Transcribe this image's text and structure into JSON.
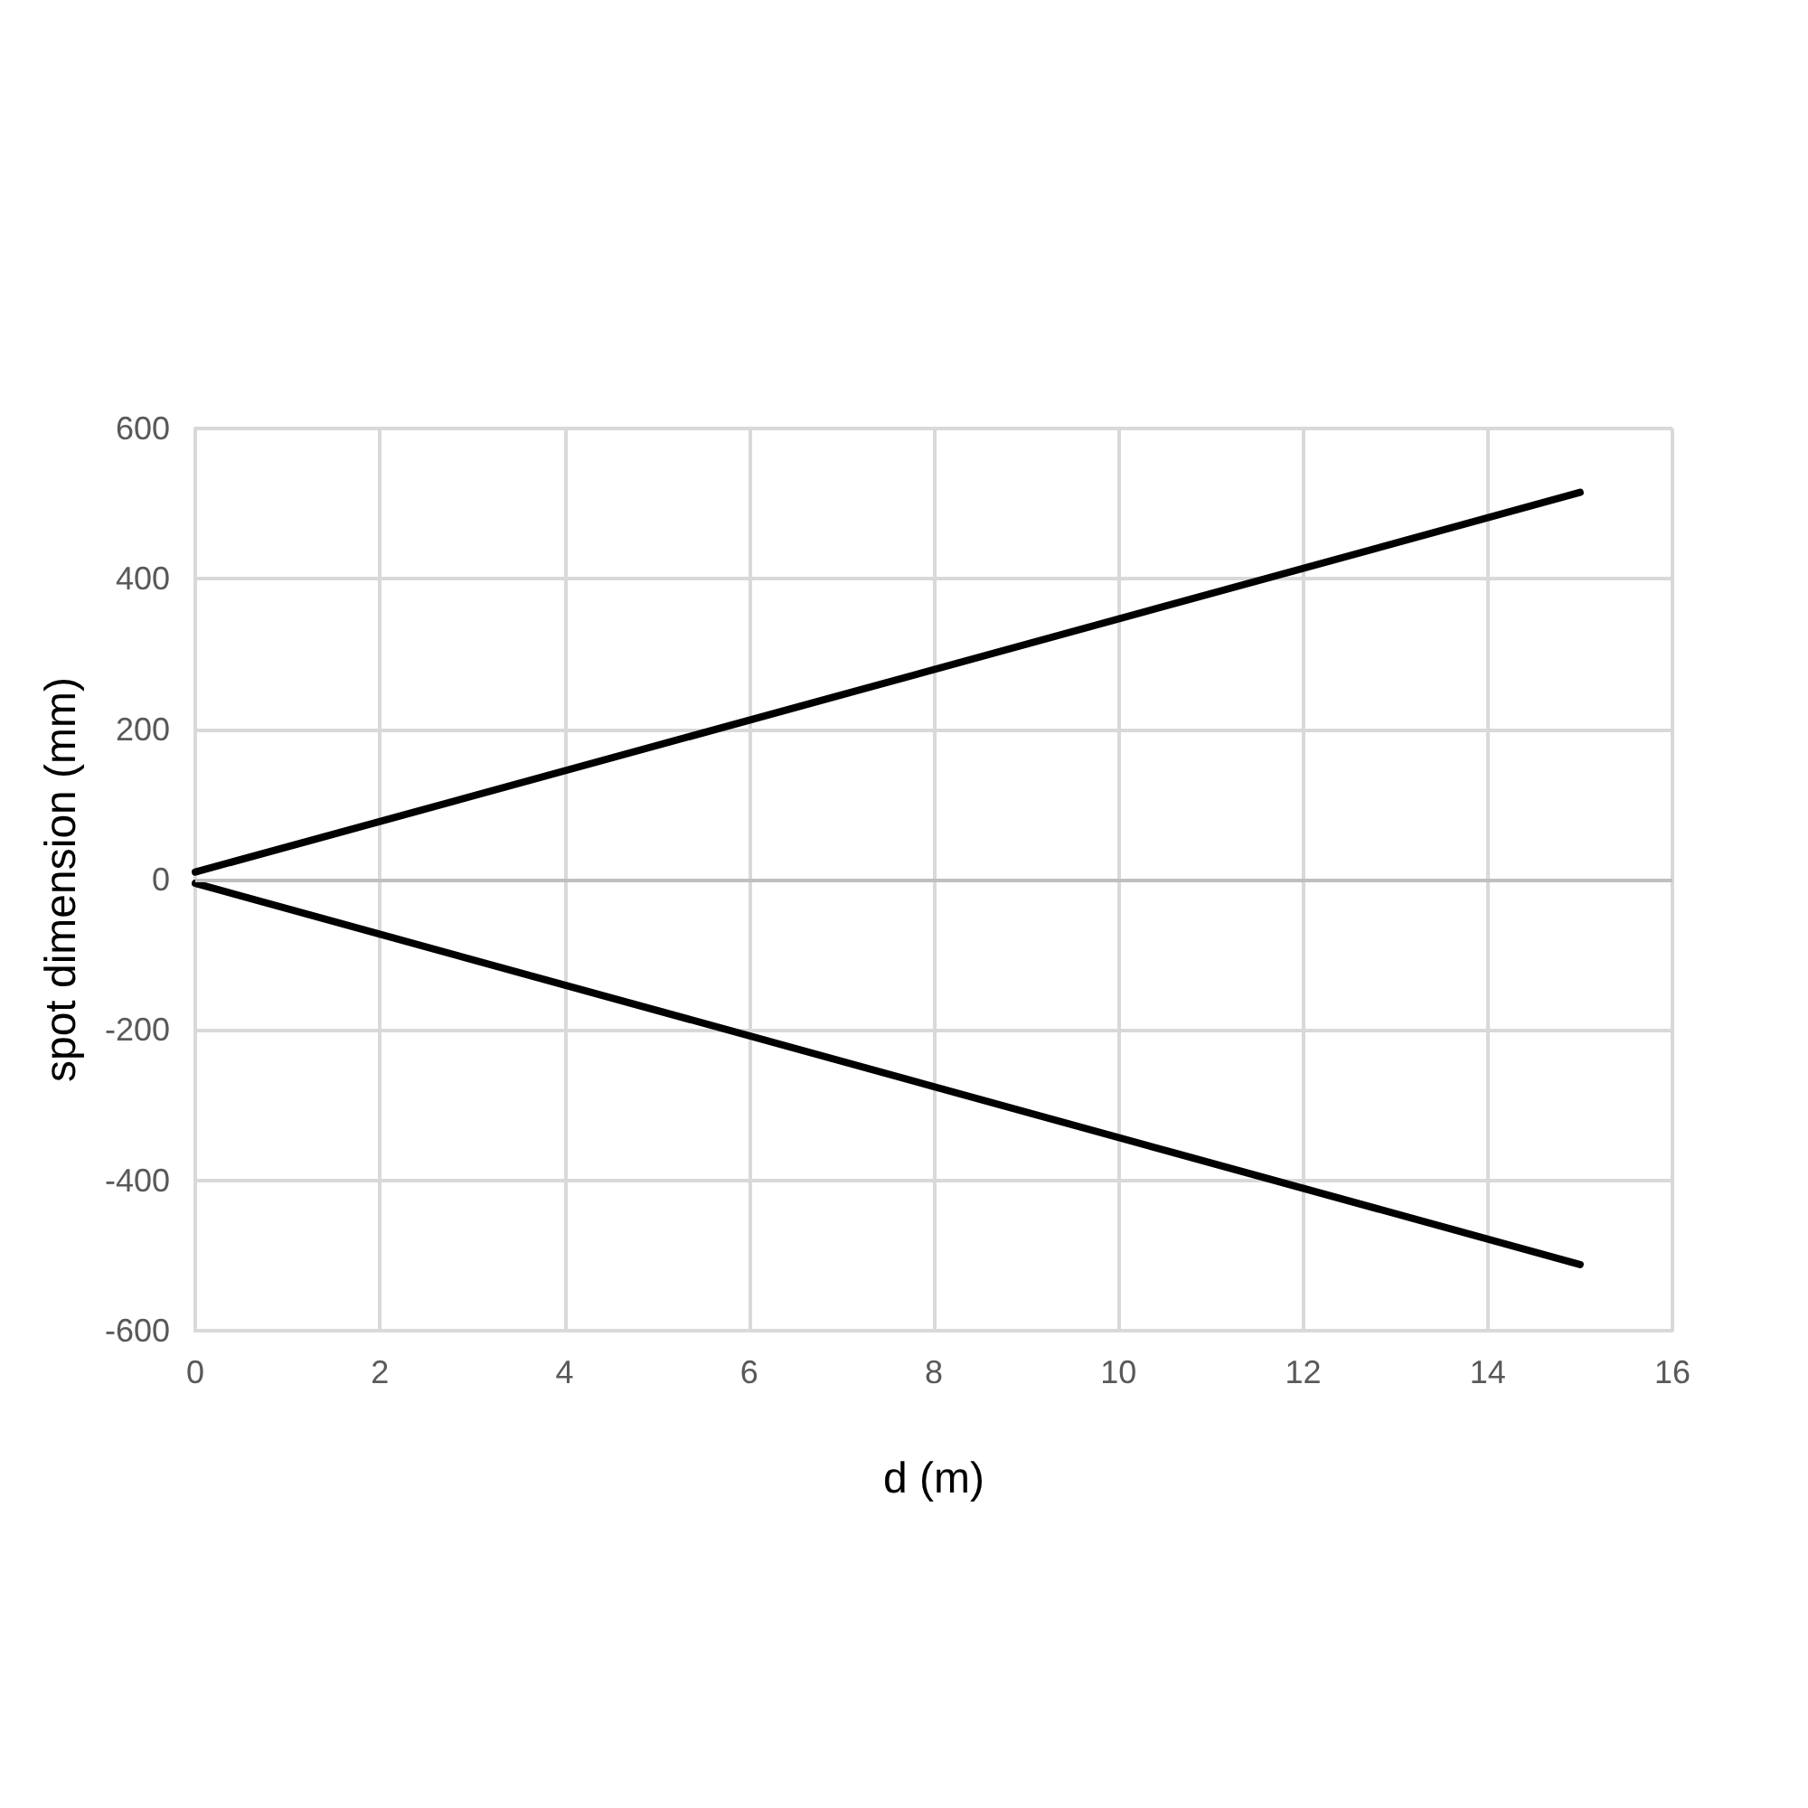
{
  "chart_data": {
    "type": "line",
    "xlabel": "d (m)",
    "ylabel": "spot dimension (mm)",
    "series": [
      {
        "color": "#000000",
        "values": [
          10,
          515
        ]
      },
      {
        "color": "#000000",
        "values": [
          -5,
          -512
        ]
      }
    ],
    "x": [
      0,
      15
    ],
    "xlim": [
      0,
      16
    ],
    "xticks": [
      0,
      2,
      4,
      6,
      8,
      10,
      12,
      14,
      16
    ],
    "ylim": [
      -600,
      600
    ],
    "yticks": [
      -600,
      -400,
      -200,
      0,
      200,
      400,
      600
    ],
    "grid": true,
    "marker": "none",
    "line_style": "solid"
  }
}
